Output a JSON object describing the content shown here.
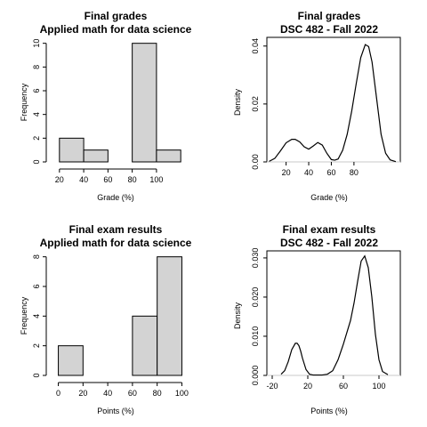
{
  "chart_data": [
    {
      "id": "p1",
      "type": "bar",
      "title": "Final grades",
      "subtitle": "Applied math for data science",
      "xlabel": "Grade (%)",
      "ylabel": "Frequency",
      "bins": [
        [
          20,
          40
        ],
        [
          40,
          60
        ],
        [
          60,
          80
        ],
        [
          80,
          100
        ],
        [
          100,
          120
        ]
      ],
      "values": [
        2,
        1,
        0,
        10,
        1
      ],
      "xlim": [
        15,
        125
      ],
      "ylim": [
        0,
        10.5
      ],
      "xticks": [
        20,
        40,
        60,
        80,
        100
      ],
      "yticks": [
        0,
        2,
        4,
        6,
        8,
        10
      ]
    },
    {
      "id": "p2",
      "type": "line",
      "title": "Final grades",
      "subtitle": "DSC 482 - Fall 2022",
      "xlabel": "Grade (%)",
      "ylabel": "Density",
      "x": [
        5,
        10,
        15,
        20,
        25,
        28,
        32,
        36,
        40,
        44,
        48,
        52,
        56,
        60,
        63,
        66,
        70,
        74,
        78,
        82,
        86,
        90,
        93,
        96,
        100,
        104,
        108,
        112,
        117
      ],
      "y": [
        0.0002,
        0.0012,
        0.0038,
        0.0066,
        0.0078,
        0.0078,
        0.0069,
        0.0052,
        0.0044,
        0.0055,
        0.0067,
        0.0058,
        0.003,
        0.0008,
        0.0006,
        0.001,
        0.004,
        0.0095,
        0.0175,
        0.027,
        0.036,
        0.0405,
        0.0398,
        0.0345,
        0.022,
        0.0095,
        0.003,
        0.0007,
        0.0001
      ],
      "xlim": [
        3,
        121
      ],
      "ylim": [
        0,
        0.043
      ],
      "xticks": [
        20,
        40,
        60,
        80
      ],
      "xtick_labels": [
        "20",
        "40",
        "60",
        "80"
      ],
      "yticks": [
        0.0,
        0.02,
        0.04
      ],
      "ytick_labels": [
        "0.00",
        "0.02",
        "0.04"
      ]
    },
    {
      "id": "p3",
      "type": "bar",
      "title": "Final exam results",
      "subtitle": "Applied math for data science",
      "xlabel": "Points (%)",
      "ylabel": "Frequency",
      "bins": [
        [
          0,
          20
        ],
        [
          20,
          40
        ],
        [
          40,
          60
        ],
        [
          60,
          80
        ],
        [
          80,
          100
        ]
      ],
      "values": [
        2,
        0,
        0,
        4,
        8
      ],
      "xlim": [
        -4,
        104
      ],
      "ylim": [
        0,
        8.4
      ],
      "xticks": [
        0,
        20,
        40,
        60,
        80,
        100
      ],
      "yticks": [
        0,
        2,
        4,
        6,
        8
      ]
    },
    {
      "id": "p4",
      "type": "line",
      "title": "Final exam results",
      "subtitle": "DSC 482 - Fall 2022",
      "xlabel": "Points (%)",
      "ylabel": "Density",
      "x": [
        -10,
        -6,
        -2,
        2,
        6,
        8,
        10,
        12,
        14,
        18,
        22,
        26,
        30,
        36,
        42,
        48,
        54,
        60,
        64,
        68,
        72,
        76,
        80,
        84,
        88,
        92,
        96,
        100,
        104,
        110
      ],
      "y": [
        0.0003,
        0.0012,
        0.0035,
        0.0066,
        0.0082,
        0.0082,
        0.0076,
        0.0062,
        0.0044,
        0.0015,
        0.0003,
        0.0001,
        0.0001,
        0.0001,
        0.0003,
        0.0012,
        0.004,
        0.008,
        0.011,
        0.014,
        0.0185,
        0.024,
        0.0292,
        0.0305,
        0.0275,
        0.02,
        0.0105,
        0.004,
        0.001,
        0.0002
      ],
      "xlim": [
        -26,
        124
      ],
      "ylim": [
        0,
        0.0318
      ],
      "xticks": [
        -20,
        20,
        60,
        100
      ],
      "xtick_labels": [
        "-20",
        "20",
        "60",
        "100"
      ],
      "yticks": [
        0.0,
        0.01,
        0.02,
        0.03
      ],
      "ytick_labels": [
        "0.000",
        "0.010",
        "0.020",
        "0.030"
      ]
    }
  ]
}
